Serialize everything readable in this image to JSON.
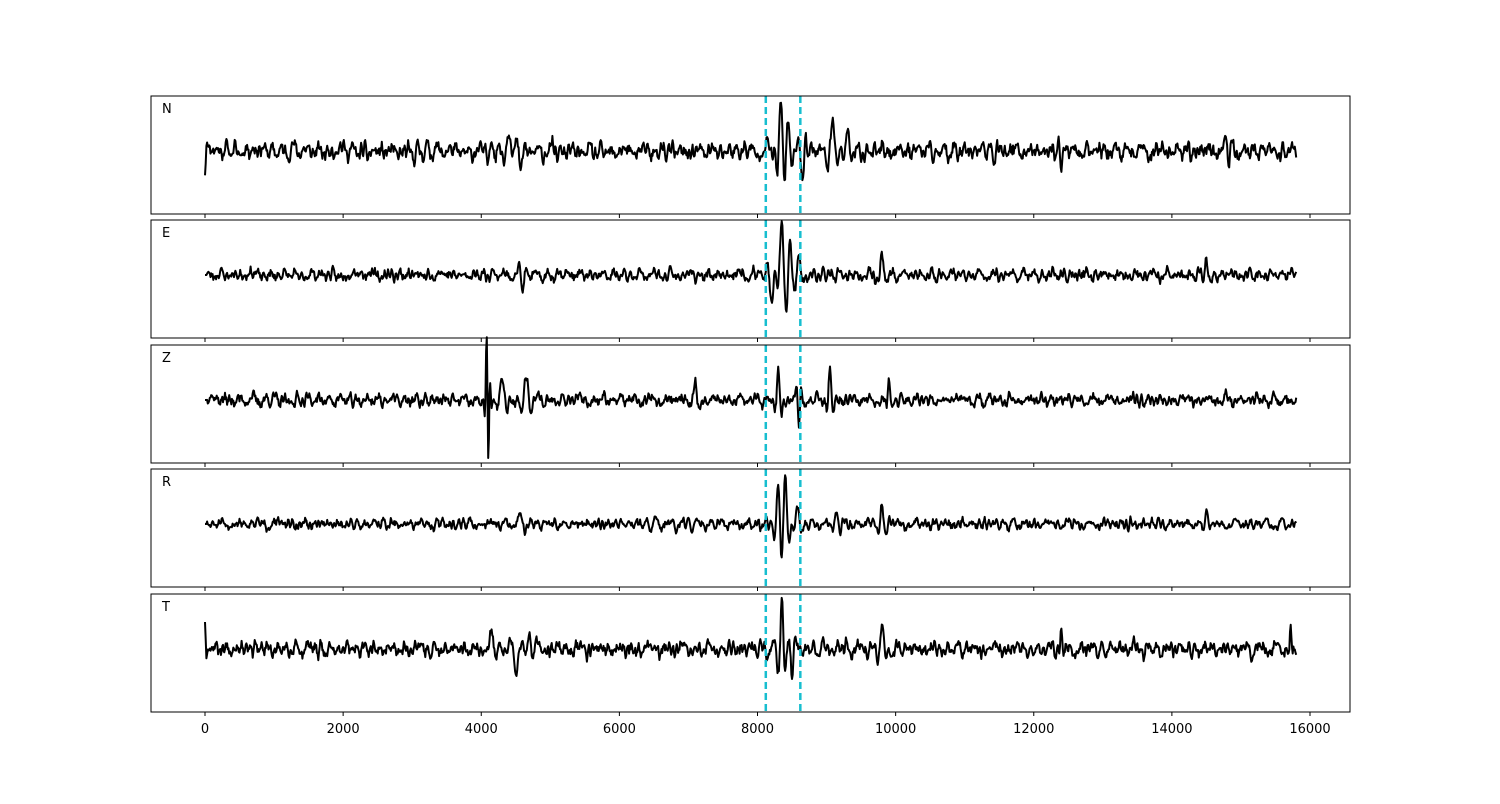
{
  "chart_data": {
    "type": "line",
    "title": "",
    "xlabel": "",
    "ylabel": "",
    "xlim": [
      -782,
      16579
    ],
    "x_ticks": [
      0,
      2000,
      4000,
      6000,
      8000,
      10000,
      12000,
      14000,
      16000
    ],
    "x_tick_labels": [
      "0",
      "2000",
      "4000",
      "6000",
      "8000",
      "10000",
      "12000",
      "14000",
      "16000"
    ],
    "sample_range": [
      0,
      15800
    ],
    "y_ticks_visible": false,
    "grid": false,
    "line_color": "#000000",
    "marker_color": "#17becf",
    "vertical_markers": [
      8120,
      8620
    ],
    "marker_style": "dashed",
    "traces": [
      {
        "label": "N",
        "seed": 11,
        "noise": 0.13,
        "events": [
          [
            0,
            -0.45,
            30
          ],
          [
            4150,
            0.35,
            60
          ],
          [
            4400,
            0.35,
            80
          ],
          [
            4570,
            -0.35,
            60
          ],
          [
            8340,
            1.0,
            60
          ],
          [
            8440,
            0.7,
            60
          ],
          [
            8650,
            -0.5,
            50
          ],
          [
            9100,
            0.45,
            90
          ],
          [
            9300,
            0.4,
            60
          ],
          [
            12400,
            -0.4,
            50
          ],
          [
            14780,
            0.45,
            50
          ]
        ]
      },
      {
        "label": "E",
        "seed": 23,
        "noise": 0.08,
        "events": [
          [
            4600,
            -0.3,
            60
          ],
          [
            8200,
            -0.6,
            70
          ],
          [
            8350,
            0.95,
            70
          ],
          [
            8470,
            0.7,
            60
          ],
          [
            8600,
            0.4,
            60
          ],
          [
            9800,
            0.35,
            70
          ],
          [
            14500,
            0.25,
            60
          ]
        ]
      },
      {
        "label": "Z",
        "seed": 37,
        "noise": 0.09,
        "events": [
          [
            4080,
            0.9,
            30
          ],
          [
            4100,
            -0.9,
            30
          ],
          [
            4300,
            0.45,
            80
          ],
          [
            4650,
            0.4,
            80
          ],
          [
            7100,
            0.3,
            80
          ],
          [
            8300,
            0.5,
            50
          ],
          [
            8600,
            -0.6,
            40
          ],
          [
            9050,
            0.5,
            50
          ],
          [
            9900,
            0.35,
            40
          ]
        ]
      },
      {
        "label": "R",
        "seed": 51,
        "noise": 0.08,
        "events": [
          [
            4550,
            0.25,
            80
          ],
          [
            8300,
            0.8,
            60
          ],
          [
            8400,
            0.85,
            60
          ],
          [
            8580,
            0.4,
            60
          ],
          [
            9150,
            0.3,
            60
          ],
          [
            9800,
            0.35,
            60
          ],
          [
            14500,
            0.25,
            50
          ]
        ]
      },
      {
        "label": "T",
        "seed": 67,
        "noise": 0.11,
        "events": [
          [
            0,
            0.5,
            25
          ],
          [
            4150,
            0.35,
            60
          ],
          [
            4500,
            -0.4,
            80
          ],
          [
            4700,
            0.35,
            50
          ],
          [
            8350,
            0.9,
            50
          ],
          [
            8500,
            -0.65,
            50
          ],
          [
            9800,
            0.4,
            60
          ],
          [
            12400,
            0.35,
            40
          ],
          [
            15720,
            0.35,
            30
          ]
        ]
      }
    ]
  }
}
